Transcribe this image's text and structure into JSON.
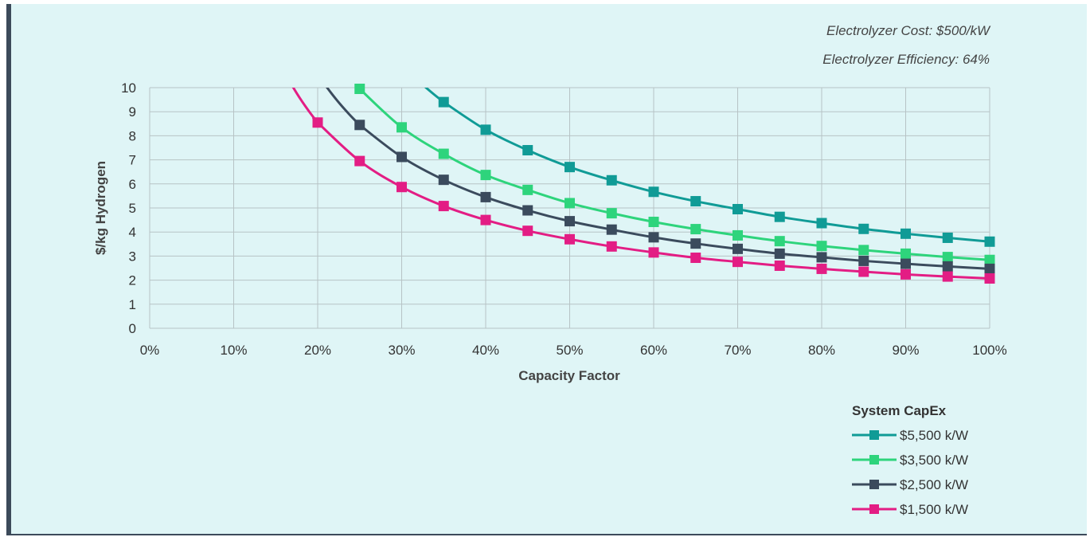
{
  "notes": {
    "line1": "Electrolyzer Cost: $500/kW",
    "line2": "Electrolyzer Efficiency: 64%"
  },
  "chart_data": {
    "type": "line",
    "title": "",
    "xlabel": "Capacity Factor",
    "ylabel": "$/kg Hydrogen",
    "xlim": [
      0,
      100
    ],
    "ylim": [
      0,
      10
    ],
    "x_ticks": [
      "0%",
      "10%",
      "20%",
      "30%",
      "40%",
      "50%",
      "60%",
      "70%",
      "80%",
      "90%",
      "100%"
    ],
    "y_ticks": [
      "0",
      "1",
      "2",
      "3",
      "4",
      "5",
      "6",
      "7",
      "8",
      "9",
      "10"
    ],
    "grid": true,
    "legend_title": "System CapEx",
    "legend_position": "bottom-right",
    "series": [
      {
        "name": "$5,500 k/W",
        "color": "#109b96",
        "x": [
          35,
          40,
          45,
          50,
          55,
          60,
          65,
          70,
          75,
          80,
          85,
          90,
          95,
          100
        ],
        "values": [
          9.4,
          8.25,
          7.4,
          6.7,
          6.15,
          5.67,
          5.28,
          4.95,
          4.63,
          4.37,
          4.13,
          3.93,
          3.76,
          3.6
        ]
      },
      {
        "name": "$3,500 k/W",
        "color": "#2ed47c",
        "x": [
          25,
          30,
          35,
          40,
          45,
          50,
          55,
          60,
          65,
          70,
          75,
          80,
          85,
          90,
          95,
          100
        ],
        "values": [
          9.95,
          8.35,
          7.25,
          6.37,
          5.75,
          5.2,
          4.78,
          4.42,
          4.12,
          3.86,
          3.62,
          3.42,
          3.25,
          3.1,
          2.96,
          2.84
        ]
      },
      {
        "name": "$2,500 k/W",
        "color": "#3b4b5d",
        "x": [
          25,
          30,
          35,
          40,
          45,
          50,
          55,
          60,
          65,
          70,
          75,
          80,
          85,
          90,
          95,
          100
        ],
        "values": [
          8.45,
          7.12,
          6.17,
          5.45,
          4.9,
          4.45,
          4.1,
          3.78,
          3.52,
          3.3,
          3.1,
          2.95,
          2.8,
          2.68,
          2.57,
          2.47
        ]
      },
      {
        "name": "$1,500 k/W",
        "color": "#e31d84",
        "x": [
          20,
          25,
          30,
          35,
          40,
          45,
          50,
          55,
          60,
          65,
          70,
          75,
          80,
          85,
          90,
          95,
          100
        ],
        "values": [
          8.55,
          6.95,
          5.87,
          5.08,
          4.5,
          4.05,
          3.7,
          3.4,
          3.15,
          2.93,
          2.76,
          2.6,
          2.47,
          2.35,
          2.24,
          2.15,
          2.07
        ]
      }
    ]
  }
}
